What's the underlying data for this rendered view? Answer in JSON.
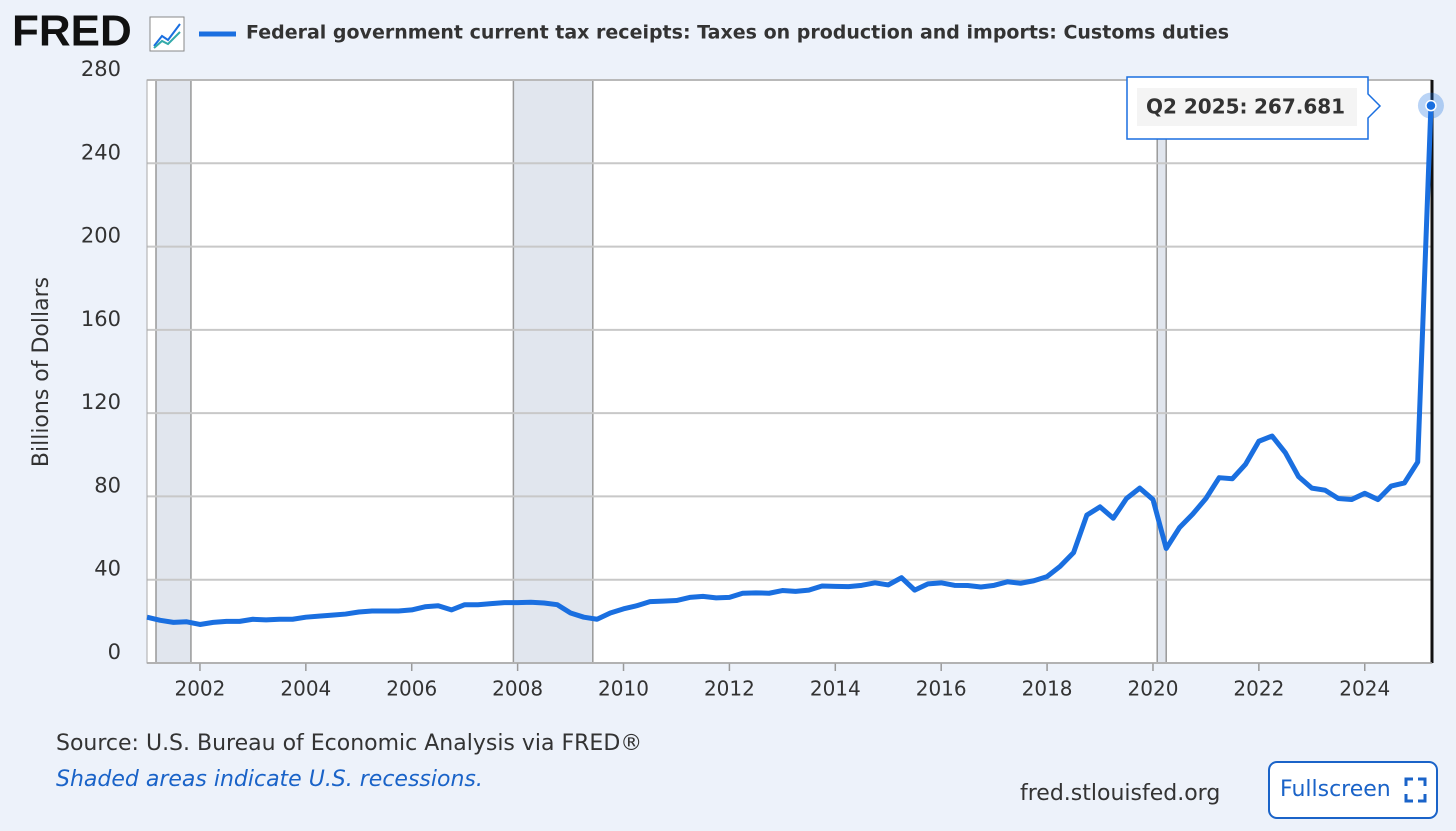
{
  "logo": "FRED",
  "chart_data": {
    "type": "line",
    "x": [
      2001,
      2001.25,
      2001.5,
      2001.75,
      2002,
      2002.25,
      2002.5,
      2002.75,
      2003,
      2003.25,
      2003.5,
      2003.75,
      2004,
      2004.25,
      2004.5,
      2004.75,
      2005,
      2005.25,
      2005.5,
      2005.75,
      2006,
      2006.25,
      2006.5,
      2006.75,
      2007,
      2007.25,
      2007.5,
      2007.75,
      2008,
      2008.25,
      2008.5,
      2008.75,
      2009,
      2009.25,
      2009.5,
      2009.75,
      2010,
      2010.25,
      2010.5,
      2010.75,
      2011,
      2011.25,
      2011.5,
      2011.75,
      2012,
      2012.25,
      2012.5,
      2012.75,
      2013,
      2013.25,
      2013.5,
      2013.75,
      2014,
      2014.25,
      2014.5,
      2014.75,
      2015,
      2015.25,
      2015.5,
      2015.75,
      2016,
      2016.25,
      2016.5,
      2016.75,
      2017,
      2017.25,
      2017.5,
      2017.75,
      2018,
      2018.25,
      2018.5,
      2018.75,
      2019,
      2019.25,
      2019.5,
      2019.75,
      2020,
      2020.25,
      2020.5,
      2020.75,
      2021,
      2021.25,
      2021.5,
      2021.75,
      2022,
      2022.25,
      2022.5,
      2022.75,
      2023,
      2023.25,
      2023.5,
      2023.75,
      2024,
      2024.25,
      2024.5,
      2024.75,
      2025,
      2025.25
    ],
    "series": [
      {
        "name": "Federal government current tax receipts: Taxes on production and imports: Customs duties",
        "color": "#1a6fe0",
        "values": [
          22,
          20.5,
          19.5,
          19.8,
          18.5,
          19.5,
          20,
          20,
          21,
          20.7,
          21,
          21,
          22,
          22.5,
          23,
          23.5,
          24.5,
          25,
          25,
          25,
          25.5,
          27,
          27.5,
          25.5,
          28,
          28,
          28.5,
          29,
          29,
          29.2,
          28.8,
          28,
          24,
          22,
          21,
          24,
          26,
          27.5,
          29.5,
          29.7,
          30,
          31.5,
          32,
          31.3,
          31.5,
          33.5,
          33.7,
          33.5,
          34.8,
          34.4,
          35,
          37,
          36.8,
          36.7,
          37.3,
          38.5,
          37.5,
          41,
          35,
          38,
          38.5,
          37.3,
          37.2,
          36.5,
          37.3,
          39,
          38.3,
          39.5,
          41.5,
          46.5,
          53,
          71,
          75,
          69.5,
          79,
          84,
          78.5,
          55,
          65,
          71.5,
          79,
          89,
          88.5,
          95.5,
          106.5,
          109,
          101,
          89.5,
          84,
          83,
          79,
          78.5,
          81.5,
          78.5,
          85,
          86.5,
          96.5,
          267.681
        ]
      }
    ],
    "xlim": [
      2001,
      2025.27
    ],
    "xticks": [
      2002,
      2004,
      2006,
      2008,
      2010,
      2012,
      2014,
      2016,
      2018,
      2020,
      2022,
      2024
    ],
    "ylim": [
      0,
      280
    ],
    "yticks": [
      0,
      40,
      80,
      120,
      160,
      200,
      240,
      280
    ],
    "y_label": "Billions of Dollars",
    "grid": true,
    "recessions": [
      [
        2001.17,
        2001.83
      ],
      [
        2007.92,
        2009.42
      ],
      [
        2020.08,
        2020.25
      ]
    ],
    "tooltip": {
      "label": "Q2 2025:"
    }
  },
  "footer": {
    "source": "Source: U.S. Bureau of Economic Analysis via FRED®",
    "note": "Shaded areas indicate U.S. recessions.",
    "url": "fred.stlouisfed.org",
    "button": "Fullscreen"
  }
}
